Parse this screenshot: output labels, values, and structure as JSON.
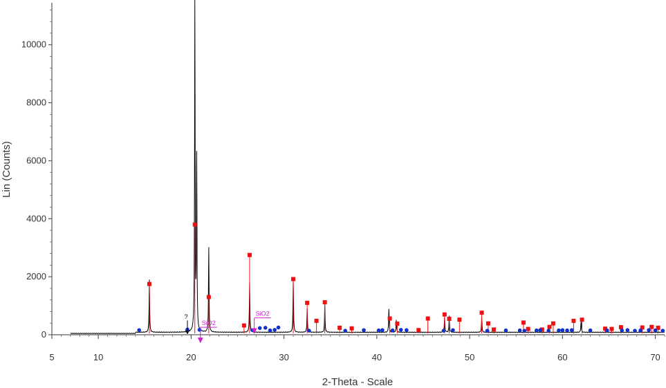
{
  "chart_data": {
    "type": "line",
    "xlabel": "2-Theta - Scale",
    "ylabel": "Lin (Counts)",
    "xlim": [
      5,
      71
    ],
    "ylim": [
      0,
      11400
    ],
    "x_ticks": [
      "5",
      "10",
      "20",
      "30",
      "40",
      "50",
      "60",
      "70"
    ],
    "y_ticks": [
      "0",
      "2000",
      "4000",
      "6000",
      "8000",
      "10000"
    ],
    "grid": false,
    "legend": "none",
    "colors": {
      "pattern": "#000000",
      "phase_red": "#ee1111",
      "phase_blue": "#1133cc",
      "annotation": "#cc22cc"
    },
    "series": [
      {
        "values": [
          {
            "x": 15.5,
            "y": 1900
          },
          {
            "x": 20.4,
            "y": 11400
          },
          {
            "x": 20.6,
            "y": 6000
          },
          {
            "x": 21.9,
            "y": 3000
          },
          {
            "x": 26.3,
            "y": 1800
          },
          {
            "x": 31.0,
            "y": 1950
          },
          {
            "x": 32.5,
            "y": 900
          },
          {
            "x": 34.4,
            "y": 1050
          },
          {
            "x": 41.3,
            "y": 900
          },
          {
            "x": 42.1,
            "y": 500
          },
          {
            "x": 47.3,
            "y": 600
          },
          {
            "x": 47.8,
            "y": 650
          },
          {
            "x": 51.3,
            "y": 600
          },
          {
            "x": 62.0,
            "y": 450
          }
        ]
      },
      {
        "values": [
          {
            "x": 15.5,
            "y": 1750
          },
          {
            "x": 20.4,
            "y": 3800
          },
          {
            "x": 21.9,
            "y": 1300
          },
          {
            "x": 25.7,
            "y": 320
          },
          {
            "x": 26.3,
            "y": 2750
          },
          {
            "x": 31.0,
            "y": 1920
          },
          {
            "x": 32.5,
            "y": 1100
          },
          {
            "x": 33.5,
            "y": 480
          },
          {
            "x": 34.4,
            "y": 1120
          },
          {
            "x": 36.0,
            "y": 240
          },
          {
            "x": 37.3,
            "y": 220
          },
          {
            "x": 41.4,
            "y": 560
          },
          {
            "x": 42.2,
            "y": 380
          },
          {
            "x": 44.5,
            "y": 160
          },
          {
            "x": 45.5,
            "y": 560
          },
          {
            "x": 47.3,
            "y": 700
          },
          {
            "x": 47.8,
            "y": 550
          },
          {
            "x": 48.9,
            "y": 520
          },
          {
            "x": 51.3,
            "y": 760
          },
          {
            "x": 52.0,
            "y": 390
          },
          {
            "x": 52.6,
            "y": 180
          },
          {
            "x": 55.8,
            "y": 420
          },
          {
            "x": 56.3,
            "y": 200
          },
          {
            "x": 57.8,
            "y": 180
          },
          {
            "x": 58.6,
            "y": 270
          },
          {
            "x": 59.0,
            "y": 390
          },
          {
            "x": 61.2,
            "y": 480
          },
          {
            "x": 62.1,
            "y": 520
          },
          {
            "x": 64.6,
            "y": 210
          },
          {
            "x": 65.3,
            "y": 200
          },
          {
            "x": 66.3,
            "y": 260
          },
          {
            "x": 68.6,
            "y": 250
          },
          {
            "x": 69.6,
            "y": 270
          },
          {
            "x": 70.3,
            "y": 240
          }
        ]
      },
      {
        "values": [
          {
            "x": 14.4,
            "y": 160
          },
          {
            "x": 19.6,
            "y": 180
          },
          {
            "x": 20.9,
            "y": 170
          },
          {
            "x": 26.6,
            "y": 160
          },
          {
            "x": 27.4,
            "y": 230
          },
          {
            "x": 28.0,
            "y": 240
          },
          {
            "x": 28.5,
            "y": 150
          },
          {
            "x": 29.0,
            "y": 170
          },
          {
            "x": 29.4,
            "y": 250
          },
          {
            "x": 32.7,
            "y": 140
          },
          {
            "x": 36.6,
            "y": 140
          },
          {
            "x": 38.6,
            "y": 160
          },
          {
            "x": 40.2,
            "y": 150
          },
          {
            "x": 40.6,
            "y": 160
          },
          {
            "x": 41.7,
            "y": 150
          },
          {
            "x": 42.6,
            "y": 170
          },
          {
            "x": 43.2,
            "y": 160
          },
          {
            "x": 47.2,
            "y": 140
          },
          {
            "x": 48.2,
            "y": 160
          },
          {
            "x": 51.9,
            "y": 140
          },
          {
            "x": 53.9,
            "y": 150
          },
          {
            "x": 55.4,
            "y": 150
          },
          {
            "x": 55.9,
            "y": 140
          },
          {
            "x": 57.2,
            "y": 150
          },
          {
            "x": 57.6,
            "y": 160
          },
          {
            "x": 58.5,
            "y": 140
          },
          {
            "x": 59.6,
            "y": 150
          },
          {
            "x": 60.0,
            "y": 160
          },
          {
            "x": 60.5,
            "y": 150
          },
          {
            "x": 61.0,
            "y": 160
          },
          {
            "x": 63.0,
            "y": 150
          },
          {
            "x": 64.8,
            "y": 150
          },
          {
            "x": 66.4,
            "y": 150
          },
          {
            "x": 67.0,
            "y": 160
          },
          {
            "x": 67.8,
            "y": 140
          },
          {
            "x": 68.4,
            "y": 150
          },
          {
            "x": 69.3,
            "y": 160
          },
          {
            "x": 70.0,
            "y": 150
          },
          {
            "x": 70.8,
            "y": 140
          }
        ]
      }
    ],
    "annotations": [
      {
        "text": "?",
        "x": 19.6,
        "y": 400
      },
      {
        "text": "SiO2",
        "x": 21.0,
        "y": 260
      },
      {
        "text": "SiO2",
        "x": 26.8,
        "y": 580
      }
    ]
  }
}
